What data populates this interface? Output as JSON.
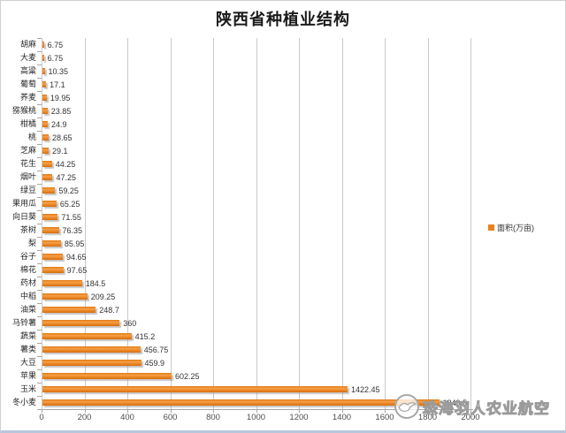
{
  "title": "陕西省种植业结构",
  "legend": {
    "label": "面积(万亩)",
    "color": "#e8821c"
  },
  "watermark": {
    "text": "珠海羽人农业航空"
  },
  "chart_data": {
    "type": "bar",
    "orientation": "horizontal",
    "title": "陕西省种植业结构",
    "series_name": "面积(万亩)",
    "categories": [
      "胡麻",
      "大麦",
      "高粱",
      "葡萄",
      "荞麦",
      "猕猴桃",
      "柑橘",
      "桃",
      "芝麻",
      "花生",
      "烟叶",
      "绿豆",
      "果用瓜",
      "向日葵",
      "茶树",
      "梨",
      "谷子",
      "棉花",
      "药材",
      "中稻",
      "油菜",
      "马铃薯",
      "蔬菜",
      "薯类",
      "大豆",
      "苹果",
      "玉米",
      "冬小麦"
    ],
    "values": [
      6.75,
      6.75,
      10.35,
      17.1,
      19.95,
      23.85,
      24.9,
      28.65,
      29.1,
      44.25,
      47.25,
      59.25,
      65.25,
      71.55,
      76.35,
      85.95,
      94.65,
      97.65,
      184.5,
      209.25,
      248.7,
      360,
      415.2,
      456.75,
      459.9,
      602.25,
      1422.45,
      1849.5
    ],
    "xlim": [
      0,
      2000
    ],
    "xticks": [
      0,
      200,
      400,
      600,
      800,
      1000,
      1200,
      1400,
      1600,
      1800,
      2000
    ],
    "grid": true,
    "legend_position": "right",
    "bar_color": "#e8821c",
    "value_labels": true
  }
}
